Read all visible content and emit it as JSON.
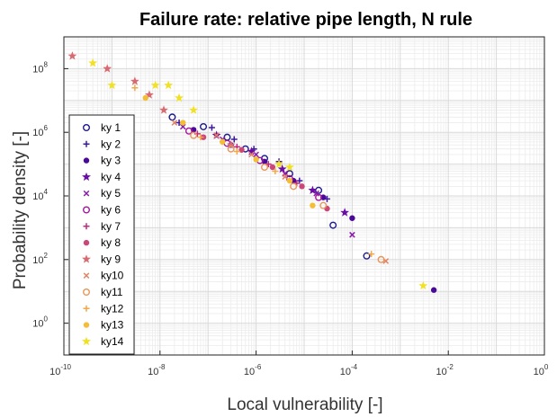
{
  "chart_data": {
    "type": "scatter",
    "title": "Failure rate: relative pipe length, N rule",
    "xlabel": "Local vulnerability [-]",
    "ylabel": "Probability density [-]",
    "x_scale": "log",
    "y_scale": "log",
    "xlim": [
      1e-10,
      1
    ],
    "ylim": [
      0.1,
      1000000000.0
    ],
    "grid": true,
    "legend_position": "left",
    "x_ticks": [
      {
        "base": "10",
        "exp": "-10",
        "value": 1e-10
      },
      {
        "base": "10",
        "exp": "-8",
        "value": 1e-08
      },
      {
        "base": "10",
        "exp": "-6",
        "value": 1e-06
      },
      {
        "base": "10",
        "exp": "-4",
        "value": 0.0001
      },
      {
        "base": "10",
        "exp": "-2",
        "value": 0.01
      },
      {
        "base": "10",
        "exp": "0",
        "value": 1
      }
    ],
    "y_ticks": [
      {
        "base": "10",
        "exp": "0",
        "value": 1
      },
      {
        "base": "10",
        "exp": "2",
        "value": 100
      },
      {
        "base": "10",
        "exp": "4",
        "value": 10000
      },
      {
        "base": "10",
        "exp": "6",
        "value": 1000000
      },
      {
        "base": "10",
        "exp": "8",
        "value": 100000000
      }
    ],
    "series": [
      {
        "name": "ky 1",
        "marker": "circle-open",
        "color": "#1c1a8c",
        "points": [
          [
            1.8e-08,
            3000000.0
          ],
          [
            8e-08,
            1500000.0
          ],
          [
            2.5e-07,
            700000.0
          ],
          [
            6e-07,
            300000.0
          ],
          [
            1.5e-06,
            150000.0
          ],
          [
            5e-06,
            50000.0
          ],
          [
            2e-05,
            15000.0
          ],
          [
            4e-05,
            1200.0
          ],
          [
            0.0002,
            130.0
          ]
        ]
      },
      {
        "name": "ky 2",
        "marker": "plus",
        "color": "#3a19a0",
        "points": [
          [
            2.5e-08,
            2000000.0
          ],
          [
            1.2e-07,
            1400000.0
          ],
          [
            3.5e-07,
            600000.0
          ],
          [
            9e-07,
            300000.0
          ],
          [
            3e-06,
            120000.0
          ],
          [
            8e-06,
            30000.0
          ],
          [
            3e-05,
            8000.0
          ]
        ]
      },
      {
        "name": "ky 3",
        "marker": "circle-filled",
        "color": "#4a0a98",
        "points": [
          [
            5e-08,
            1200000.0
          ],
          [
            3e-07,
            400000.0
          ],
          [
            1.5e-06,
            120000.0
          ],
          [
            6e-06,
            30000.0
          ],
          [
            2.5e-05,
            9000.0
          ],
          [
            0.0001,
            2000.0
          ],
          [
            0.005,
            11
          ]
        ]
      },
      {
        "name": "ky 4",
        "marker": "star",
        "color": "#6a0ca6",
        "points": [
          [
            1.5e-07,
            800000.0
          ],
          [
            8e-07,
            250000.0
          ],
          [
            3.5e-06,
            70000.0
          ],
          [
            1.5e-05,
            15000.0
          ],
          [
            7e-05,
            3000.0
          ]
        ]
      },
      {
        "name": "ky 5",
        "marker": "x",
        "color": "#8a1aa8",
        "points": [
          [
            3e-08,
            1500000.0
          ],
          [
            2e-07,
            600000.0
          ],
          [
            1e-06,
            200000.0
          ],
          [
            4e-06,
            50000.0
          ],
          [
            1.8e-05,
            12000.0
          ],
          [
            0.0001,
            600.0
          ]
        ]
      },
      {
        "name": "ky 6",
        "marker": "circle-open",
        "color": "#a5179a",
        "points": [
          [
            4e-08,
            1100000.0
          ],
          [
            2.5e-07,
            450000.0
          ],
          [
            1.2e-06,
            130000.0
          ],
          [
            5e-06,
            35000.0
          ],
          [
            2e-05,
            9000.0
          ]
        ]
      },
      {
        "name": "ky 7",
        "marker": "plus",
        "color": "#bd2a7e",
        "points": [
          [
            6e-08,
            900000.0
          ],
          [
            4e-07,
            350000.0
          ],
          [
            1.8e-06,
            100000.0
          ],
          [
            7e-06,
            25000.0
          ]
        ]
      },
      {
        "name": "ky 8",
        "marker": "circle-filled",
        "color": "#cc4677",
        "points": [
          [
            8e-08,
            700000.0
          ],
          [
            5e-07,
            280000.0
          ],
          [
            2.2e-06,
            80000.0
          ],
          [
            9e-06,
            20000.0
          ],
          [
            3e-05,
            4000.0
          ]
        ]
      },
      {
        "name": "ky 9",
        "marker": "star",
        "color": "#d86a72",
        "points": [
          [
            1.5e-10,
            250000000.0
          ],
          [
            8e-10,
            100000000.0
          ],
          [
            3e-09,
            40000000.0
          ],
          [
            6e-09,
            15000000.0
          ],
          [
            1.2e-08,
            5000000.0
          ],
          [
            3e-07,
            400000.0
          ]
        ]
      },
      {
        "name": "ky10",
        "marker": "x",
        "color": "#e28060",
        "points": [
          [
            2e-08,
            2000000.0
          ],
          [
            1.5e-07,
            800000.0
          ],
          [
            8e-07,
            200000.0
          ],
          [
            4e-06,
            40000.0
          ],
          [
            0.0005,
            90
          ]
        ]
      },
      {
        "name": "ky11",
        "marker": "circle-open",
        "color": "#e8965a",
        "points": [
          [
            5e-08,
            800000.0
          ],
          [
            3e-07,
            300000.0
          ],
          [
            1.5e-06,
            80000.0
          ],
          [
            6e-06,
            20000.0
          ],
          [
            2.5e-05,
            5000.0
          ],
          [
            0.0004,
            100
          ]
        ]
      },
      {
        "name": "ky12",
        "marker": "plus",
        "color": "#f0a848",
        "points": [
          [
            3e-09,
            25000000.0
          ],
          [
            7e-08,
            700000.0
          ],
          [
            4e-07,
            250000.0
          ],
          [
            2.5e-06,
            60000.0
          ],
          [
            0.00025,
            150
          ]
        ]
      },
      {
        "name": "ky13",
        "marker": "circle-filled",
        "color": "#f4bd36",
        "points": [
          [
            5e-09,
            12000000.0
          ],
          [
            3e-08,
            2000000.0
          ],
          [
            2e-07,
            500000.0
          ],
          [
            1e-06,
            140000.0
          ],
          [
            5e-06,
            30000.0
          ],
          [
            1.5e-05,
            5000.0
          ]
        ]
      },
      {
        "name": "ky14",
        "marker": "star",
        "color": "#f2e024",
        "points": [
          [
            4e-10,
            150000000.0
          ],
          [
            1e-09,
            30000000.0
          ],
          [
            8e-09,
            30000000.0
          ],
          [
            1.5e-08,
            30000000.0
          ],
          [
            2.5e-08,
            12000000.0
          ],
          [
            5e-08,
            5000000.0
          ],
          [
            3e-06,
            100000.0
          ],
          [
            5e-06,
            80000.0
          ],
          [
            0.003,
            15
          ]
        ]
      }
    ]
  }
}
